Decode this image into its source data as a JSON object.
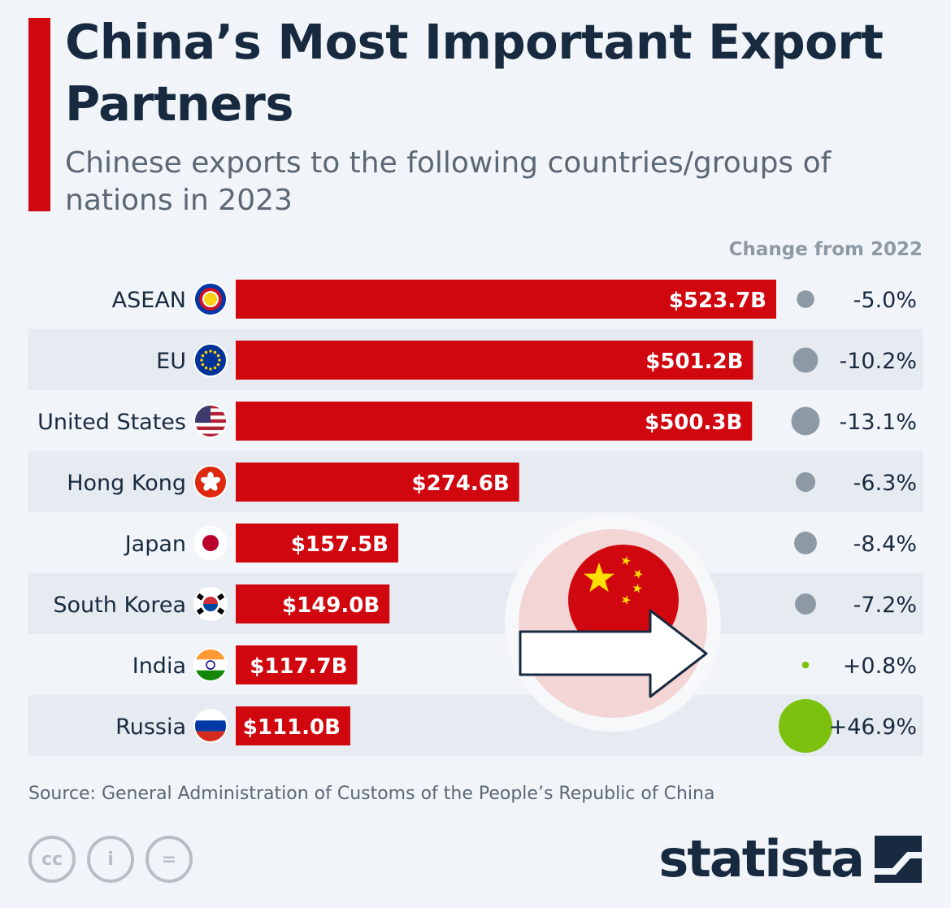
{
  "header": {
    "title": "China’s Most Important Export Partners",
    "subtitle": "Chinese exports to the following countries/groups of nations in 2023",
    "change_header": "Change from 2022"
  },
  "chart_data": {
    "type": "bar",
    "orientation": "horizontal",
    "title": "China’s Most Important Export Partners",
    "subtitle": "Chinese exports to the following countries/groups of nations in 2023",
    "categories": [
      "ASEAN",
      "EU",
      "United States",
      "Hong Kong",
      "Japan",
      "South Korea",
      "India",
      "Russia"
    ],
    "values": [
      523.7,
      501.2,
      500.3,
      274.6,
      157.5,
      149.0,
      117.7,
      111.0
    ],
    "value_labels": [
      "$523.7B",
      "$501.2B",
      "$500.3B",
      "$274.6B",
      "$157.5B",
      "$149.0B",
      "$117.7B",
      "$111.0B"
    ],
    "unit": "billion USD",
    "change": [
      -5.0,
      -10.2,
      -13.1,
      -6.3,
      -8.4,
      -7.2,
      0.8,
      46.9
    ],
    "change_labels": [
      "-5.0%",
      "-10.2%",
      "-13.1%",
      "-6.3%",
      "-8.4%",
      "-7.2%",
      "+0.8%",
      "+46.9%"
    ],
    "flags": [
      "asean-emblem-icon",
      "eu-flag-icon",
      "us-flag-icon",
      "hong-kong-flag-icon",
      "japan-flag-icon",
      "south-korea-flag-icon",
      "india-flag-icon",
      "russia-flag-icon"
    ],
    "xlim": [
      0,
      523.7
    ],
    "bar_color": "#d1070f",
    "negative_color": "#8d99a5",
    "positive_color": "#7cc110"
  },
  "source": "Source: General Administration of Customs of the People’s Republic of China",
  "footer": {
    "cc_icons": [
      "cc",
      "i",
      "="
    ],
    "brand": "statista"
  },
  "colors": {
    "accent": "#d1070f",
    "title": "#182a40",
    "subtitle": "#5c6775",
    "background": "#f1f5f9",
    "row_stripe": "#e6ebf1"
  }
}
